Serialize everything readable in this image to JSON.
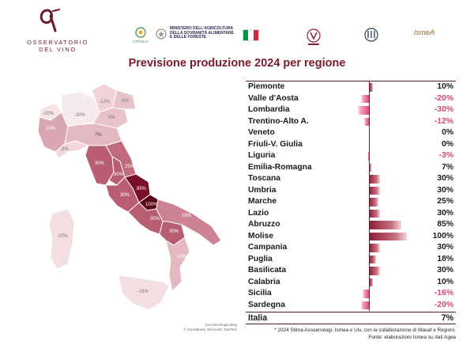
{
  "header": {
    "logo_text_1": "OSSERVATORIO",
    "logo_text_2": "DEL VINO",
    "gov_mark_label": "CTITALIA",
    "ministry_text": "MINISTERO DELL'AGRICOLTURA\nDELLA SOVRANITÀ ALIMENTARE\nE DELLE FORESTE",
    "partner_ismea": "ismeA",
    "colors": {
      "brand": "#6b1a2b",
      "flag": [
        "#009246",
        "#ffffff",
        "#ce2b37"
      ]
    }
  },
  "map": {
    "attribution_1": "Con tecnologia Bing",
    "attribution_2": "© GeoNames, Microsoft, TomTom"
  },
  "chart_data": {
    "type": "bar",
    "title": "Previsione produzione 2024 per regione",
    "orientation": "horizontal",
    "unit": "%",
    "categories": [
      "Piemonte",
      "Valle d'Aosta",
      "Lombardia",
      "Trentino-Alto A.",
      "Veneto",
      "Friuli-V. Giulia",
      "Liguria",
      "Emilia-Romagna",
      "Toscana",
      "Umbria",
      "Marche",
      "Lazio",
      "Abruzzo",
      "Molise",
      "Campania",
      "Puglia",
      "Basilicata",
      "Calabria",
      "Sicilia",
      "Sardegna"
    ],
    "values": [
      10,
      -20,
      -30,
      -12,
      0,
      0,
      -3,
      7,
      30,
      30,
      25,
      30,
      85,
      100,
      30,
      18,
      30,
      10,
      -16,
      -20
    ],
    "labels": [
      "10%",
      "-20%",
      "-30%",
      "-12%",
      "0%",
      "0%",
      "-3%",
      "7%",
      "30%",
      "30%",
      "25%",
      "30%",
      "85%",
      "100%",
      "30%",
      "18%",
      "30%",
      "10%",
      "-16%",
      "-20%"
    ],
    "total": {
      "label": "Italia",
      "value": 7,
      "text": "7%"
    },
    "xlim": [
      -100,
      100
    ],
    "colors": {
      "positive": "#8b1c36",
      "negative": "#e8457e",
      "text_negative": "#d2477a"
    }
  },
  "footnotes": {
    "note": "* 2024 Stima Assoenologi, Ismea e Uiv, con la collaborazione di Masaf e Regioni.",
    "source": "Fonte: elaborazioni Ismea su dati Agea"
  }
}
